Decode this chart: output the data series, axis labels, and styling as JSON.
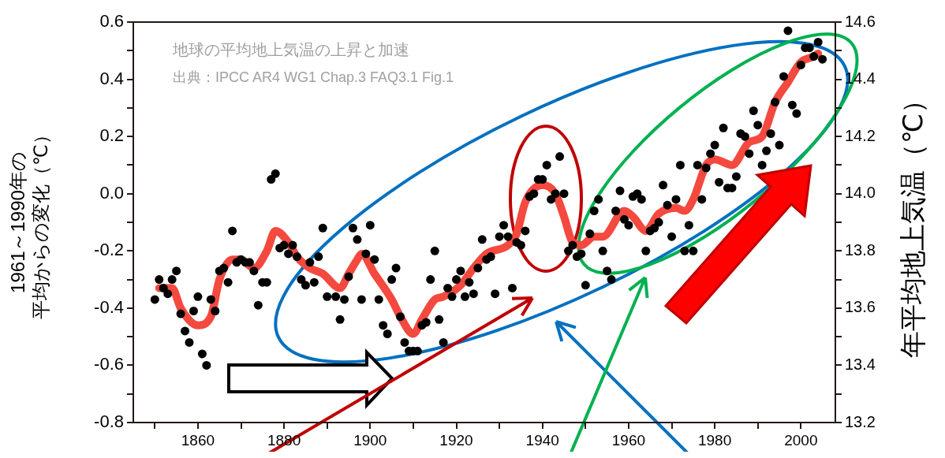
{
  "chart_data": {
    "type": "scatter",
    "title": "地球の平均地上気温の上昇と加速",
    "annotations": [
      "出典：IPCC AR4 WG1 Chap.3 FAQ3.1 Fig.1"
    ],
    "ylabel": "1961～1990年の平均からの変化（℃）",
    "y2label": "年平均地上気温（℃）",
    "xlim": [
      1845,
      2008
    ],
    "xticks": [
      {
        "value": 1850,
        "label": null
      },
      1860,
      {
        "value": 1870,
        "label": null
      },
      1880,
      {
        "value": 1890,
        "label": null
      },
      1900,
      {
        "value": 1910,
        "label": null
      },
      1920,
      {
        "value": 1930,
        "label": null
      },
      1940,
      {
        "value": 1950,
        "label": null
      },
      1960,
      {
        "value": 1970,
        "label": null
      },
      1980,
      {
        "value": 1990,
        "label": null
      },
      2000
    ],
    "ylim": [
      -0.8,
      0.6
    ],
    "yticks": [
      -0.8,
      {
        "value": -0.7,
        "label": null
      },
      -0.6,
      {
        "value": -0.5,
        "label": null
      },
      -0.4,
      {
        "value": -0.3,
        "label": null
      },
      -0.2,
      {
        "value": -0.1,
        "label": null
      },
      {
        "value": 0,
        "label": "0.0"
      },
      {
        "value": 0.1,
        "label": null
      },
      0.2,
      {
        "value": 0.3,
        "label": null
      },
      0.4,
      {
        "value": 0.5,
        "label": null
      },
      0.6
    ],
    "y2lim": [
      13.2,
      14.6
    ],
    "y2ticks": [
      13.2,
      {
        "value": 13.3,
        "label": null
      },
      13.4,
      {
        "value": 13.5,
        "label": null
      },
      13.6,
      {
        "value": 13.7,
        "label": null
      },
      13.8,
      {
        "value": 13.9,
        "label": null
      },
      {
        "value": 14,
        "label": "14.0"
      },
      {
        "value": 14.1,
        "label": null
      },
      14.2,
      {
        "value": 14.3,
        "label": null
      },
      14.4,
      {
        "value": 14.5,
        "label": null
      },
      14.6
    ],
    "grid": false,
    "legend": false,
    "series": [
      {
        "type": "scatter",
        "marker": "circle",
        "color": "#000000",
        "x": [
          1850,
          1851,
          1852,
          1853,
          1854,
          1855,
          1856,
          1857,
          1858,
          1859,
          1860,
          1861,
          1862,
          1863,
          1864,
          1865,
          1866,
          1867,
          1868,
          1869,
          1870,
          1871,
          1872,
          1873,
          1874,
          1875,
          1876,
          1877,
          1878,
          1879,
          1880,
          1881,
          1882,
          1883,
          1884,
          1885,
          1886,
          1887,
          1888,
          1889,
          1890,
          1892,
          1893,
          1894,
          1895,
          1896,
          1897,
          1898,
          1899,
          1900,
          1901,
          1902,
          1903,
          1904,
          1905,
          1906,
          1907,
          1908,
          1909,
          1910,
          1911,
          1912,
          1913,
          1914,
          1915,
          1916,
          1917,
          1918,
          1919,
          1920,
          1921,
          1922,
          1923,
          1924,
          1925,
          1926,
          1927,
          1928,
          1929,
          1930,
          1931,
          1932,
          1933,
          1934,
          1935,
          1936,
          1937,
          1938,
          1939,
          1940,
          1941,
          1942,
          1943,
          1944,
          1945,
          1946,
          1947,
          1948,
          1949,
          1950,
          1951,
          1952,
          1953,
          1954,
          1955,
          1956,
          1957,
          1958,
          1959,
          1960,
          1961,
          1962,
          1963,
          1964,
          1965,
          1966,
          1967,
          1968,
          1969,
          1970,
          1971,
          1972,
          1973,
          1974,
          1975,
          1976,
          1977,
          1978,
          1979,
          1980,
          1981,
          1982,
          1983,
          1984,
          1985,
          1986,
          1987,
          1988,
          1989,
          1990,
          1991,
          1992,
          1993,
          1994,
          1995,
          1996,
          1997,
          1998,
          1999,
          2000,
          2001,
          2002,
          2003,
          2004,
          2005
        ],
        "values": [
          -0.37,
          -0.3,
          -0.33,
          -0.35,
          -0.3,
          -0.27,
          -0.42,
          -0.48,
          -0.52,
          -0.41,
          -0.36,
          -0.56,
          -0.6,
          -0.37,
          -0.41,
          -0.27,
          -0.26,
          -0.31,
          -0.13,
          -0.24,
          -0.23,
          -0.24,
          -0.24,
          -0.27,
          -0.39,
          -0.31,
          -0.31,
          0.05,
          0.07,
          -0.19,
          -0.18,
          -0.21,
          -0.18,
          -0.22,
          -0.3,
          -0.32,
          -0.24,
          -0.31,
          -0.22,
          -0.12,
          -0.36,
          -0.36,
          -0.44,
          -0.37,
          -0.29,
          -0.12,
          -0.16,
          -0.37,
          -0.21,
          -0.11,
          -0.23,
          -0.37,
          -0.46,
          -0.49,
          -0.3,
          -0.26,
          -0.43,
          -0.52,
          -0.55,
          -0.55,
          -0.55,
          -0.46,
          -0.45,
          -0.3,
          -0.2,
          -0.44,
          -0.52,
          -0.33,
          -0.36,
          -0.3,
          -0.27,
          -0.36,
          -0.31,
          -0.35,
          -0.26,
          -0.16,
          -0.23,
          -0.22,
          -0.35,
          -0.15,
          -0.11,
          -0.15,
          -0.33,
          -0.17,
          -0.18,
          -0.13,
          -0.01,
          0.0,
          0.05,
          0.05,
          0.1,
          -0.02,
          0.0,
          0.13,
          0.0,
          -0.2,
          -0.18,
          -0.22,
          -0.21,
          -0.32,
          -0.14,
          -0.06,
          -0.02,
          -0.2,
          -0.27,
          -0.3,
          -0.06,
          0.01,
          -0.09,
          -0.11,
          -0.01,
          0.0,
          -0.02,
          -0.2,
          -0.13,
          -0.12,
          -0.1,
          0.03,
          -0.04,
          -0.15,
          -0.02,
          0.1,
          -0.2,
          -0.11,
          -0.2,
          0.1,
          -0.02,
          0.09,
          0.14,
          0.17,
          0.04,
          0.23,
          0.02,
          0.02,
          0.06,
          0.21,
          0.2,
          0.14,
          0.29,
          0.24,
          0.1,
          0.15,
          0.21,
          0.32,
          0.17,
          0.41,
          0.57,
          0.31,
          0.28,
          0.45,
          0.51,
          0.51,
          0.48,
          0.53,
          0.47
        ]
      },
      {
        "type": "line",
        "marker": "none",
        "color": "#f4493f",
        "x": [
          1851,
          1854,
          1856,
          1860,
          1863,
          1865,
          1868,
          1870,
          1873,
          1876,
          1878,
          1881,
          1883,
          1886,
          1889,
          1893,
          1895,
          1897,
          1898,
          1901,
          1905,
          1907,
          1910,
          1912,
          1915,
          1917,
          1921,
          1924,
          1927,
          1932,
          1934,
          1936,
          1940,
          1943,
          1945,
          1947,
          1949,
          1952,
          1954,
          1959,
          1961,
          1964,
          1967,
          1971,
          1973,
          1975,
          1978,
          1980,
          1984,
          1988,
          1991,
          1994,
          1997,
          2000,
          2003,
          2004
        ],
        "values": [
          -0.33,
          -0.33,
          -0.4,
          -0.46,
          -0.43,
          -0.3,
          -0.23,
          -0.23,
          -0.26,
          -0.2,
          -0.13,
          -0.17,
          -0.22,
          -0.26,
          -0.28,
          -0.33,
          -0.28,
          -0.23,
          -0.21,
          -0.28,
          -0.37,
          -0.43,
          -0.49,
          -0.44,
          -0.37,
          -0.36,
          -0.32,
          -0.26,
          -0.21,
          -0.18,
          -0.14,
          -0.03,
          0.03,
          0.0,
          -0.08,
          -0.17,
          -0.18,
          -0.15,
          -0.15,
          -0.06,
          -0.08,
          -0.13,
          -0.07,
          -0.05,
          -0.06,
          -0.02,
          0.1,
          0.12,
          0.1,
          0.18,
          0.2,
          0.32,
          0.39,
          0.46,
          0.48,
          0.49
        ]
      }
    ]
  }
}
